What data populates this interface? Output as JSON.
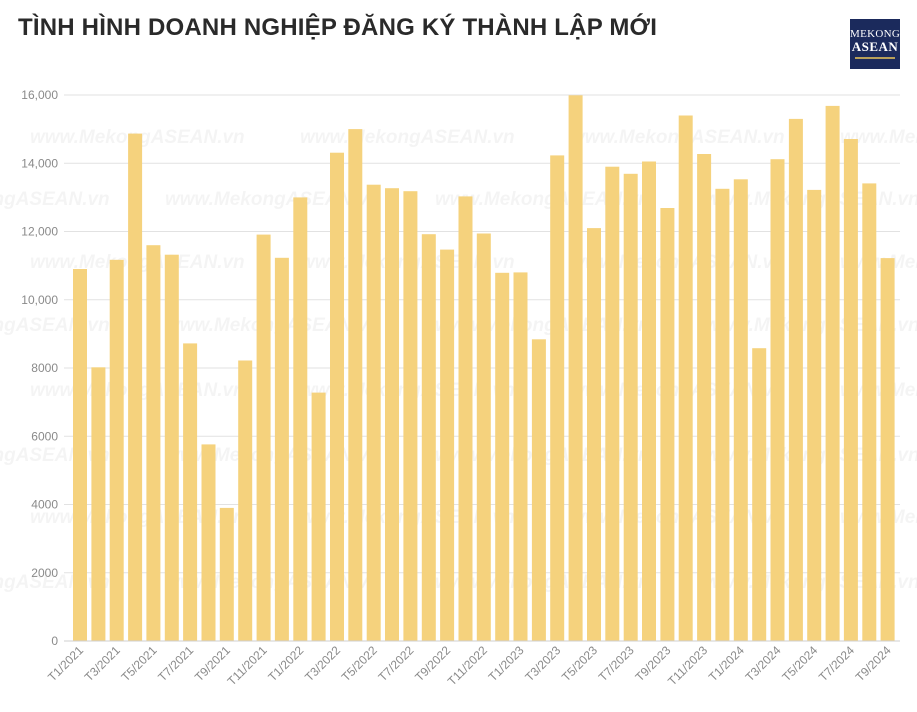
{
  "title": "TÌNH HÌNH DOANH NGHIỆP ĐĂNG KÝ THÀNH LẬP MỚI",
  "logo": {
    "line1": "MEKONG",
    "line2": "ASEAN"
  },
  "watermark": "www.MekongASEAN.vn",
  "colors": {
    "bar": "#f5d27d",
    "grid": "#e2e2e2",
    "axis_text": "#8a8a8a",
    "logo_bg": "#1b2a5c"
  },
  "chart_data": {
    "type": "bar",
    "title": "TÌNH HÌNH DOANH NGHIỆP ĐĂNG KÝ THÀNH LẬP MỚI",
    "xlabel": "",
    "ylabel": "",
    "ylim": [
      0,
      16000
    ],
    "yticks": [
      0,
      2000,
      4000,
      6000,
      8000,
      10000,
      12000,
      14000,
      16000
    ],
    "ytick_labels": [
      "0",
      "2000",
      "4000",
      "6000",
      "8000",
      "10,000",
      "12,000",
      "14,000",
      "16,000"
    ],
    "grid": true,
    "categories": [
      "T1/2021",
      "T2/2021",
      "T3/2021",
      "T4/2021",
      "T5/2021",
      "T6/2021",
      "T7/2021",
      "T8/2021",
      "T9/2021",
      "T10/2021",
      "T11/2021",
      "T12/2021",
      "T1/2022",
      "T2/2022",
      "T3/2022",
      "T4/2022",
      "T5/2022",
      "T6/2022",
      "T7/2022",
      "T8/2022",
      "T9/2022",
      "T10/2022",
      "T11/2022",
      "T12/2022",
      "T1/2023",
      "T2/2023",
      "T3/2023",
      "T4/2023",
      "T5/2023",
      "T6/2023",
      "T7/2023",
      "T8/2023",
      "T9/2023",
      "T10/2023",
      "T11/2023",
      "T12/2023",
      "T1/2024",
      "T2/2024",
      "T3/2024",
      "T4/2024",
      "T5/2024",
      "T6/2024",
      "T7/2024",
      "T8/2024",
      "T9/2024"
    ],
    "visible_tick_labels": [
      "T1/2021",
      "T3/2021",
      "T5/2021",
      "T7/2021",
      "T9/2021",
      "T11/2021",
      "T1/2022",
      "T3/2022",
      "T5/2022",
      "T7/2022",
      "T9/2022",
      "T11/2022",
      "T1/2023",
      "T3/2023",
      "T5/2023",
      "T7/2023",
      "T9/2023",
      "T11/2023",
      "T1/2024",
      "T3/2024",
      "T5/2024",
      "T7/2024",
      "T9/2024"
    ],
    "values": [
      10900,
      8020,
      11170,
      14870,
      11600,
      11320,
      8720,
      5760,
      3900,
      8220,
      11910,
      11230,
      13000,
      7280,
      14310,
      15000,
      13370,
      13270,
      13180,
      11920,
      11470,
      13030,
      11940,
      10790,
      10800,
      8840,
      14230,
      15990,
      12100,
      13900,
      13690,
      14050,
      12690,
      15400,
      14270,
      13250,
      13530,
      8580,
      14120,
      15300,
      13220,
      15680,
      14710,
      13410,
      11220
    ]
  }
}
